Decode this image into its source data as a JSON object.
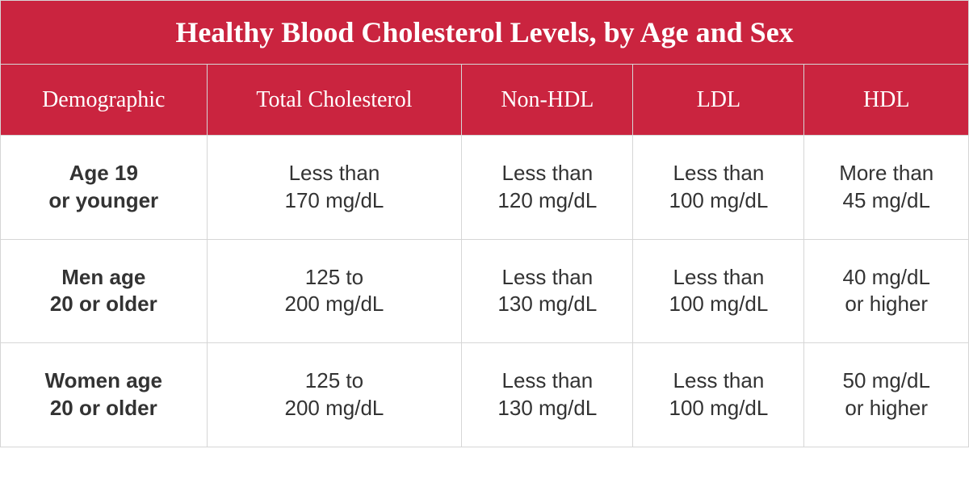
{
  "table": {
    "type": "table",
    "title": "Healthy Blood Cholesterol Levels, by Age and Sex",
    "header_bg": "#ca243f",
    "header_text_color": "#ffffff",
    "cell_bg": "#ffffff",
    "cell_text_color": "#333333",
    "border_color": "#d6d6d6",
    "title_fontsize": 36,
    "header_fontsize": 28,
    "cell_fontsize": 26,
    "columns": [
      {
        "label": "Demographic",
        "width_pct": 20
      },
      {
        "label_line1": "Total",
        "label_line2": "Cholesterol",
        "width_pct": 20
      },
      {
        "label": "Non-HDL",
        "width_pct": 20
      },
      {
        "label": "LDL",
        "width_pct": 20
      },
      {
        "label": "HDL",
        "width_pct": 20
      }
    ],
    "rows": [
      {
        "demo_line1": "Age 19",
        "demo_line2": "or younger",
        "total_line1": "Less than",
        "total_line2": "170 mg/dL",
        "nonhdl_line1": "Less than",
        "nonhdl_line2": "120 mg/dL",
        "ldl_line1": "Less than",
        "ldl_line2": "100 mg/dL",
        "hdl_line1": "More than",
        "hdl_line2": "45 mg/dL"
      },
      {
        "demo_line1": "Men age",
        "demo_line2": "20 or older",
        "total_line1": "125 to",
        "total_line2": "200 mg/dL",
        "nonhdl_line1": "Less than",
        "nonhdl_line2": "130 mg/dL",
        "ldl_line1": "Less than",
        "ldl_line2": "100 mg/dL",
        "hdl_line1": "40 mg/dL",
        "hdl_line2": "or higher"
      },
      {
        "demo_line1": "Women age",
        "demo_line2": "20 or older",
        "total_line1": "125 to",
        "total_line2": "200 mg/dL",
        "nonhdl_line1": "Less than",
        "nonhdl_line2": "130 mg/dL",
        "ldl_line1": "Less than",
        "ldl_line2": "100 mg/dL",
        "hdl_line1": "50 mg/dL",
        "hdl_line2": "or higher"
      }
    ]
  }
}
